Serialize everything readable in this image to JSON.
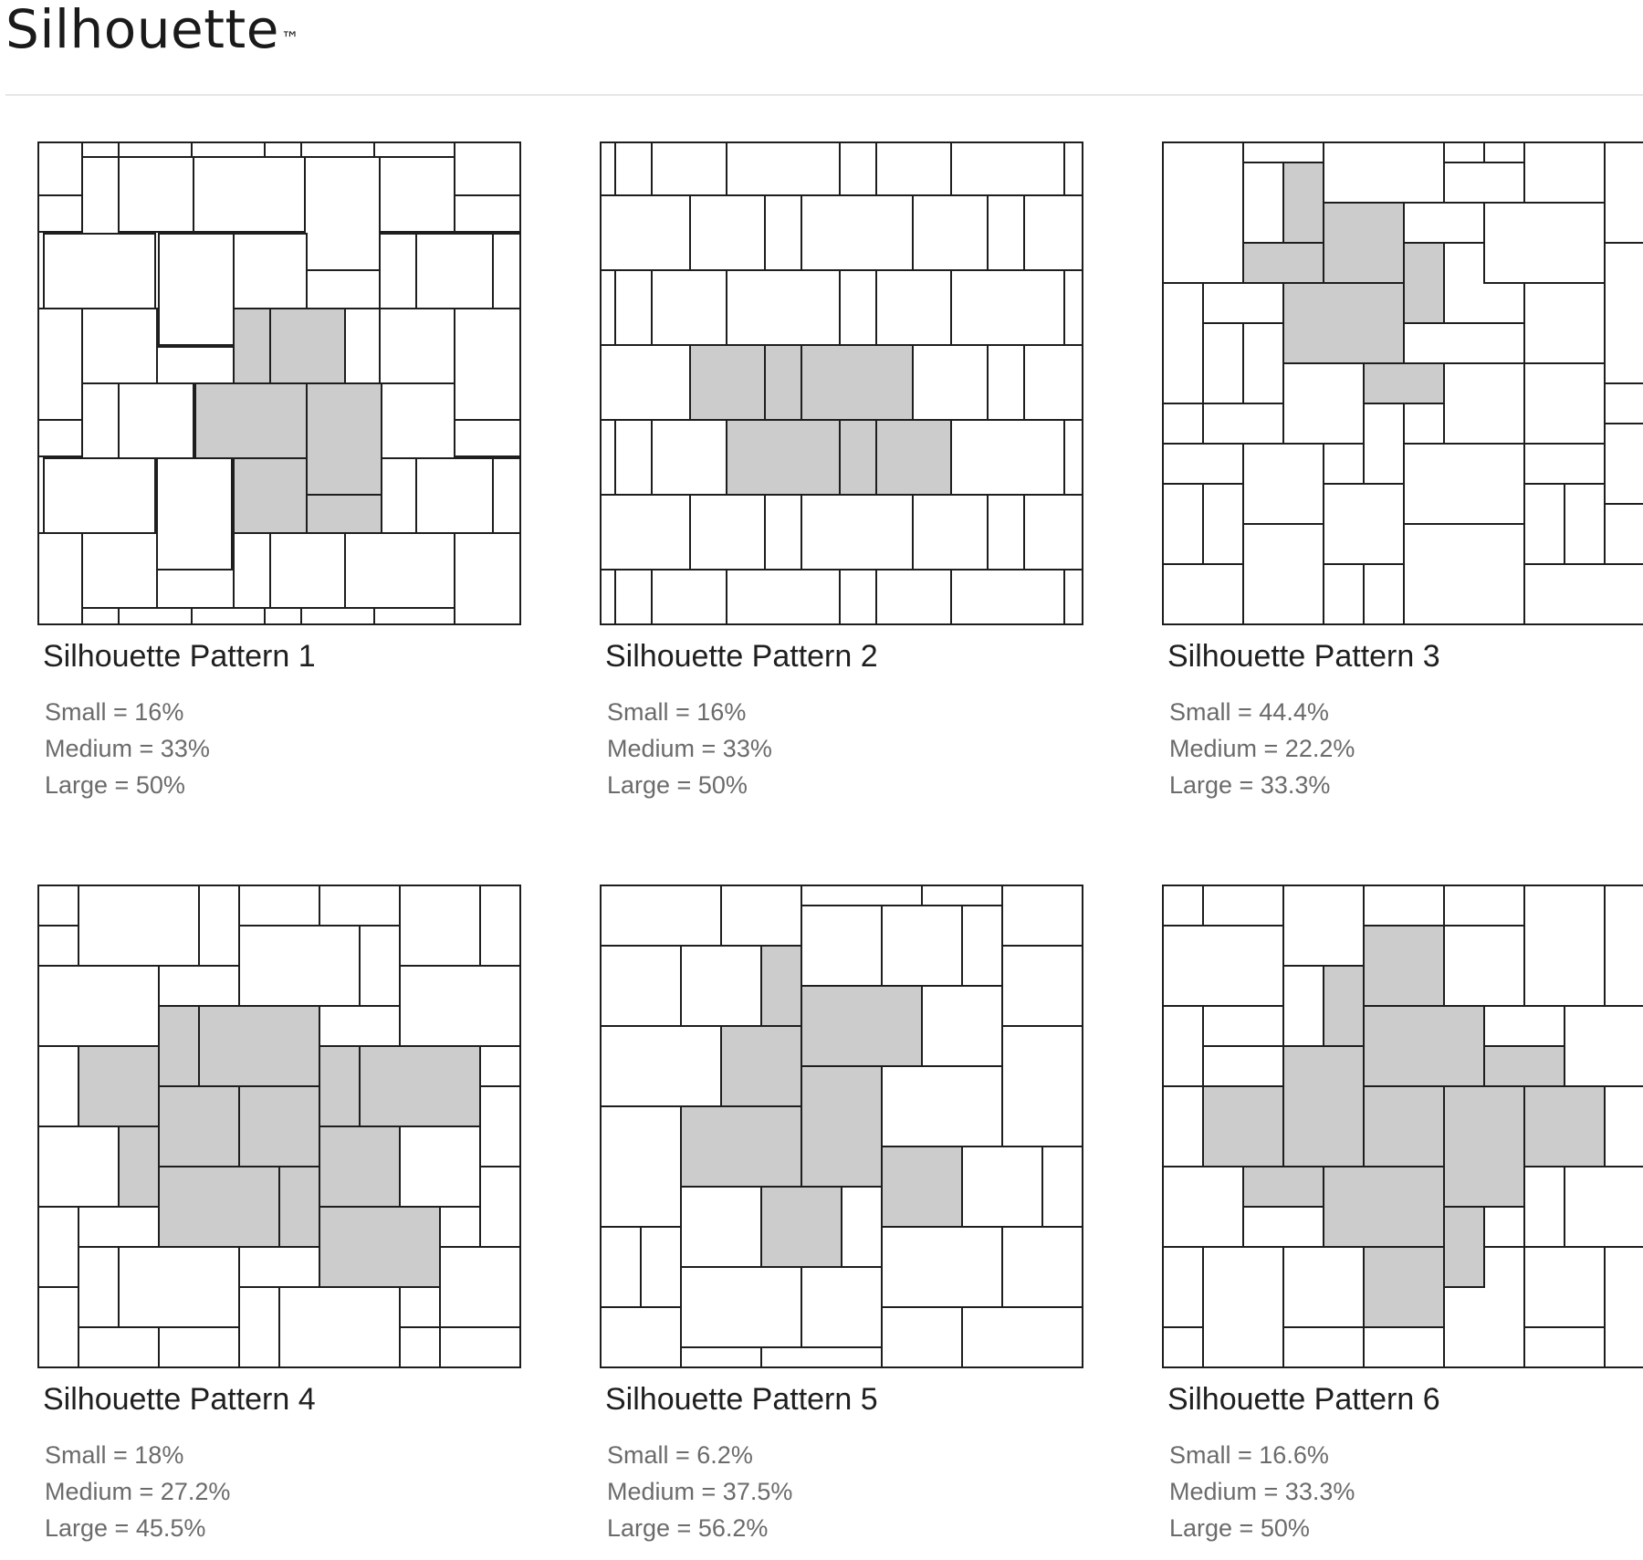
{
  "header": {
    "title": "Silhouette",
    "trademark": "™"
  },
  "colors": {
    "tile_fill": "#ffffff",
    "highlight_fill": "#cccccc",
    "outline": "#1e1e1e"
  },
  "patterns": [
    {
      "name": "Silhouette Pattern 1",
      "stats": {
        "small": "Small = 16%",
        "medium": "Medium = 33%",
        "large": "Large = 50%"
      }
    },
    {
      "name": "Silhouette Pattern 2",
      "stats": {
        "small": "Small = 16%",
        "medium": "Medium = 33%",
        "large": "Large = 50%"
      }
    },
    {
      "name": "Silhouette Pattern 3",
      "stats": {
        "small": "Small = 44.4%",
        "medium": "Medium = 22.2%",
        "large": "Large = 33.3%"
      }
    },
    {
      "name": "Silhouette Pattern 4",
      "stats": {
        "small": "Small = 18%",
        "medium": "Medium = 27.2%",
        "large": "Large = 45.5%"
      }
    },
    {
      "name": "Silhouette Pattern 5",
      "stats": {
        "small": "Small = 6.2%",
        "medium": "Medium = 37.5%",
        "large": "Large = 56.2%"
      }
    },
    {
      "name": "Silhouette Pattern 6",
      "stats": {
        "small": "Small = 16.6%",
        "medium": "Medium = 33.3%",
        "large": "Large = 50%"
      }
    }
  ]
}
